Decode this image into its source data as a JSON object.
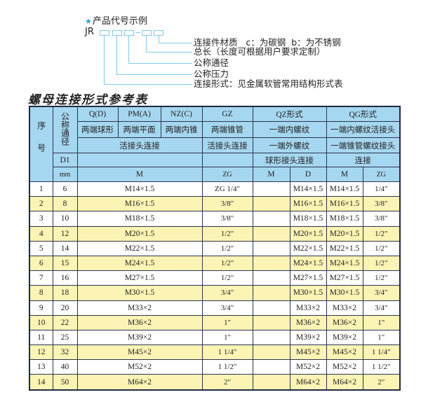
{
  "legend": {
    "title": "产品代号示例",
    "star_icon": "star-icon",
    "code_prefix": "JR",
    "labels": [
      "连接件材质   c：为碳钢  b：为不锈钢",
      "总长（长度可根据用户要求定制）",
      "公称通径",
      "公称压力",
      "连接形式：见金属软管常用结构形式表"
    ],
    "line_color": "#7fcbe6"
  },
  "table_title": "螺母连接形式参考表",
  "header": {
    "seq": "序号",
    "nominal_diameter": "公称通径",
    "d1": "D1",
    "mm": "mm",
    "types": [
      "Q(D)",
      "PM(A)",
      "NZ(C)",
      "GZ",
      "QZ形式",
      "QG形式"
    ],
    "shapes": [
      "两端球形",
      "两端平面",
      "两端内锥",
      "两端锥管",
      "一端内螺纹",
      "一端内螺纹活接头"
    ],
    "connections": [
      "活接头连接",
      "活接头连接",
      "一端外螺纹",
      "一端锥管螺纹接头"
    ],
    "connections2": [
      "球形接头连接",
      "连接"
    ],
    "units": [
      "M",
      "ZG",
      "M",
      "D",
      "M",
      "ZG"
    ]
  },
  "colors": {
    "header_bg": "#a6d7f0",
    "alt_row_bg": "#fcf4b4",
    "border": "#1e2a44"
  },
  "rows": [
    {
      "no": "1",
      "d1": "6",
      "m": "M14×1.5",
      "zg": "ZG 1/4\"",
      "qz_m": "",
      "qz_d": "M14×1.5",
      "qg_m": "M14×1.5",
      "qg_zg": "1/4\""
    },
    {
      "no": "2",
      "d1": "8",
      "m": "M16×1.5",
      "zg": "3/8\"",
      "qz_m": "",
      "qz_d": "M16×1.5",
      "qg_m": "M16×1.5",
      "qg_zg": "3/8\""
    },
    {
      "no": "3",
      "d1": "10",
      "m": "M18×1.5",
      "zg": "3/8\"",
      "qz_m": "",
      "qz_d": "M18×1.5",
      "qg_m": "M18×1.5",
      "qg_zg": "3/8\""
    },
    {
      "no": "4",
      "d1": "12",
      "m": "M20×1.5",
      "zg": "1/2\"",
      "qz_m": "",
      "qz_d": "M20×1.5",
      "qg_m": "M20×1.5",
      "qg_zg": "1/2\""
    },
    {
      "no": "5",
      "d1": "14",
      "m": "M22×1.5",
      "zg": "1/2\"",
      "qz_m": "",
      "qz_d": "M22×1.5",
      "qg_m": "M22×1.5",
      "qg_zg": "1/2\""
    },
    {
      "no": "6",
      "d1": "15",
      "m": "M24×1.5",
      "zg": "1/2\"",
      "qz_m": "",
      "qz_d": "M24×1.5",
      "qg_m": "M24×1.5",
      "qg_zg": "1/2\""
    },
    {
      "no": "7",
      "d1": "16",
      "m": "M27×1.5",
      "zg": "1/2\"",
      "qz_m": "",
      "qz_d": "M27×1.5",
      "qg_m": "M27×1.5",
      "qg_zg": "1/2\""
    },
    {
      "no": "8",
      "d1": "18",
      "m": "M30×1.5",
      "zg": "3/4\"",
      "qz_m": "",
      "qz_d": "M30×1.5",
      "qg_m": "M30×1.5",
      "qg_zg": "3/4\""
    },
    {
      "no": "9",
      "d1": "20",
      "m": "M33×2",
      "zg": "3/4\"",
      "qz_m": "",
      "qz_d": "M33×2",
      "qg_m": "M33×2",
      "qg_zg": "3/4\""
    },
    {
      "no": "10",
      "d1": "22",
      "m": "M36×2",
      "zg": "1\"",
      "qz_m": "",
      "qz_d": "M36×2",
      "qg_m": "M36×2",
      "qg_zg": "1\""
    },
    {
      "no": "11",
      "d1": "25",
      "m": "M39×2",
      "zg": "1\"",
      "qz_m": "",
      "qz_d": "M39×2",
      "qg_m": "M39×2",
      "qg_zg": "1\""
    },
    {
      "no": "12",
      "d1": "32",
      "m": "M45×2",
      "zg": "1 1/4\"",
      "qz_m": "",
      "qz_d": "M45×2",
      "qg_m": "M45×2",
      "qg_zg": "1 1/4\""
    },
    {
      "no": "13",
      "d1": "40",
      "m": "M52×2",
      "zg": "1 1/2\"",
      "qz_m": "",
      "qz_d": "M52×2",
      "qg_m": "M52×2",
      "qg_zg": "1 1/2\""
    },
    {
      "no": "14",
      "d1": "50",
      "m": "M64×2",
      "zg": "2\"",
      "qz_m": "",
      "qz_d": "M64×2",
      "qg_m": "M64×2",
      "qg_zg": "2\""
    }
  ]
}
